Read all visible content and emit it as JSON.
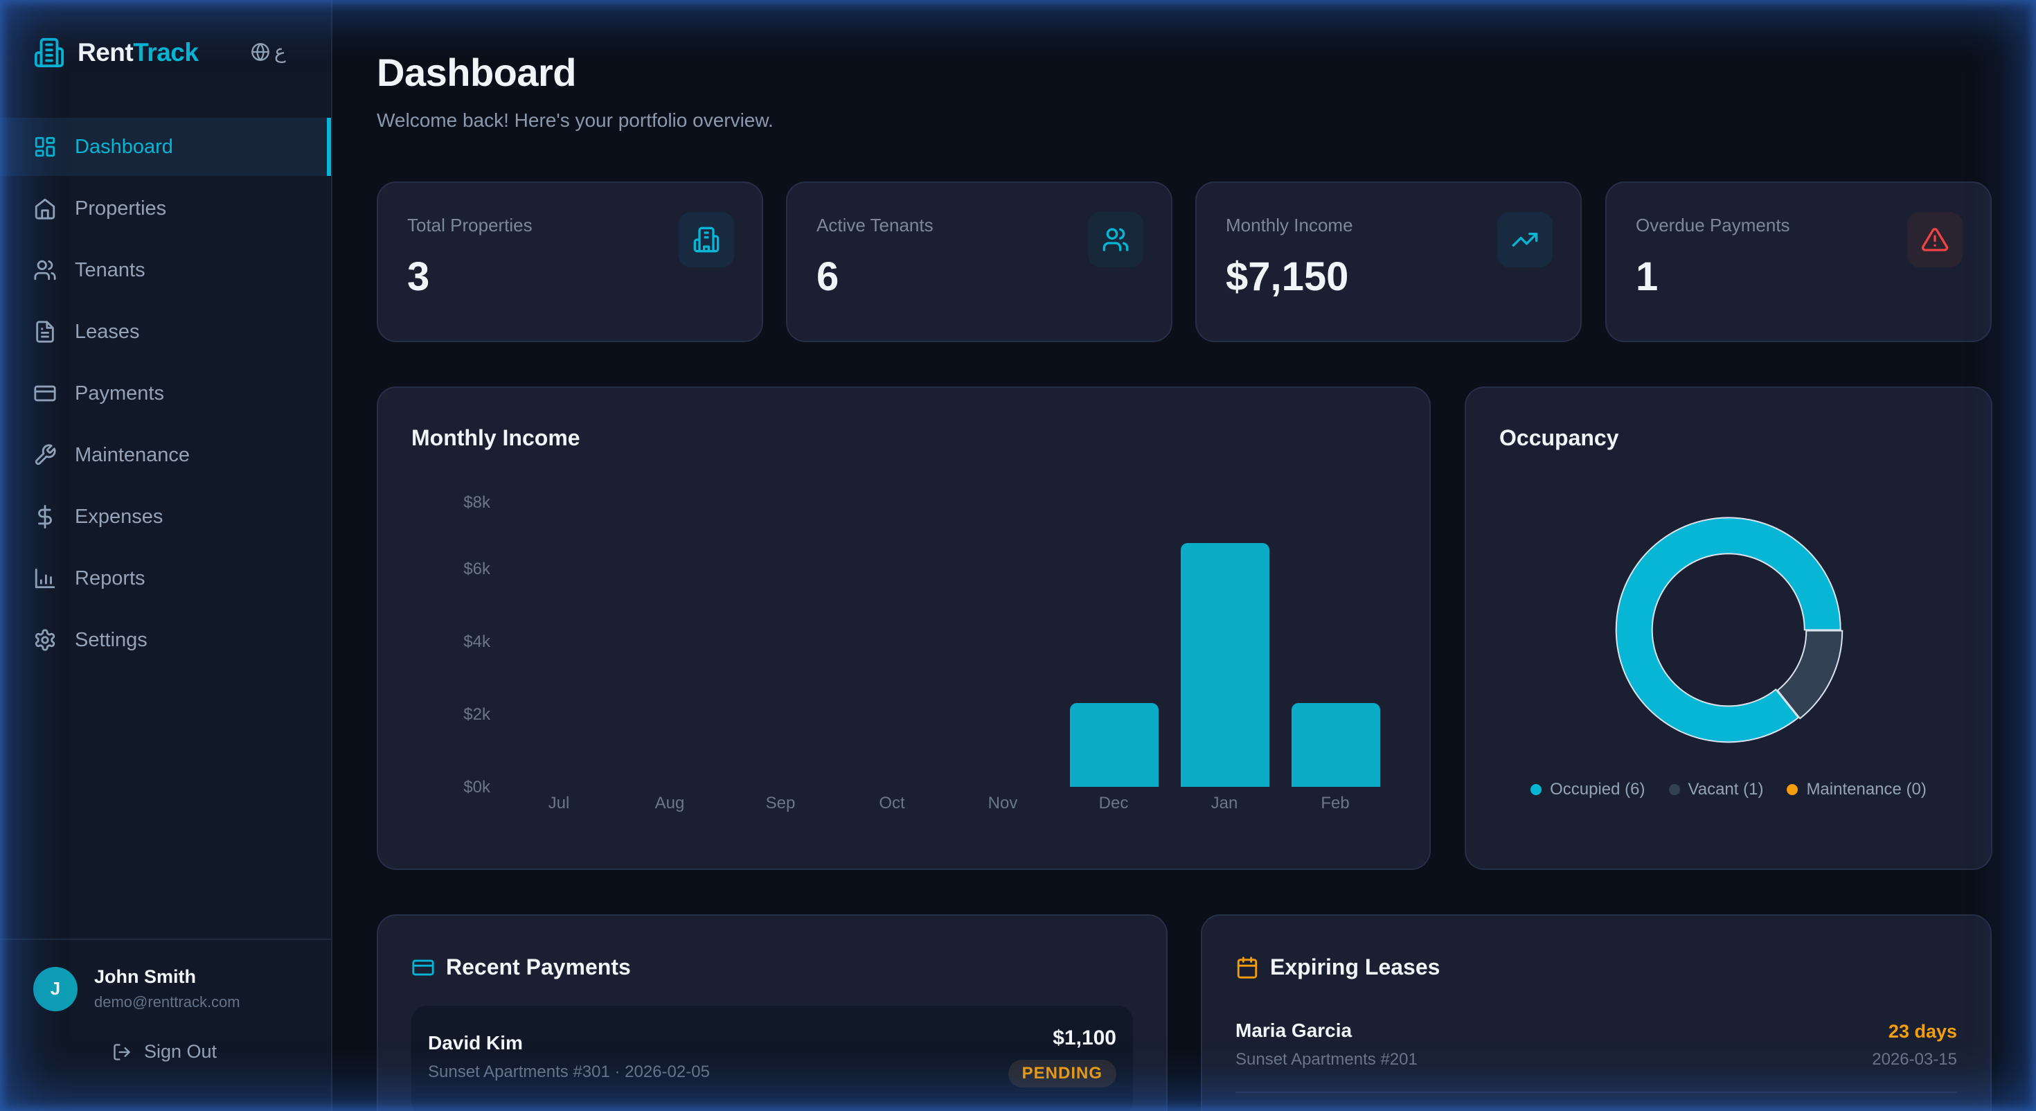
{
  "app": {
    "brand_part1": "Rent",
    "brand_part2": "Track",
    "language_toggle": "ع",
    "accent_color": "#06b6d4"
  },
  "sidebar": {
    "items": [
      {
        "label": "Dashboard",
        "icon": "layout-dashboard-icon",
        "active": true
      },
      {
        "label": "Properties",
        "icon": "home-icon"
      },
      {
        "label": "Tenants",
        "icon": "users-icon"
      },
      {
        "label": "Leases",
        "icon": "file-text-icon"
      },
      {
        "label": "Payments",
        "icon": "credit-card-icon"
      },
      {
        "label": "Maintenance",
        "icon": "wrench-icon"
      },
      {
        "label": "Expenses",
        "icon": "dollar-sign-icon"
      },
      {
        "label": "Reports",
        "icon": "bar-chart-icon"
      },
      {
        "label": "Settings",
        "icon": "gear-icon"
      }
    ],
    "user": {
      "initial": "J",
      "name": "John Smith",
      "email": "demo@renttrack.com"
    },
    "sign_out_label": "Sign Out"
  },
  "header": {
    "title": "Dashboard",
    "subtitle": "Welcome back! Here's your portfolio overview."
  },
  "stats": [
    {
      "label": "Total Properties",
      "value": "3",
      "icon": "building-icon",
      "color": "#06b6d4"
    },
    {
      "label": "Active Tenants",
      "value": "6",
      "icon": "users-icon",
      "color": "#06b6d4"
    },
    {
      "label": "Monthly Income",
      "value": "$7,150",
      "icon": "trending-up-icon",
      "color": "#06b6d4"
    },
    {
      "label": "Overdue Payments",
      "value": "1",
      "icon": "alert-triangle-icon",
      "color": "#ef4444"
    }
  ],
  "income_panel": {
    "title": "Monthly Income"
  },
  "occupancy_panel": {
    "title": "Occupancy",
    "legend": [
      {
        "label": "Occupied (6)",
        "color": "#06b6d4"
      },
      {
        "label": "Vacant (1)",
        "color": "#334155"
      },
      {
        "label": "Maintenance (0)",
        "color": "#f59e0b"
      }
    ]
  },
  "chart_data": [
    {
      "type": "bar",
      "title": "Monthly Income",
      "categories": [
        "Jul",
        "Aug",
        "Sep",
        "Oct",
        "Nov",
        "Dec",
        "Jan",
        "Feb"
      ],
      "values": [
        0,
        0,
        0,
        0,
        0,
        2300,
        6700,
        2300
      ],
      "yticks": [
        "$0k",
        "$2k",
        "$4k",
        "$6k",
        "$8k"
      ],
      "ylim": [
        0,
        8000
      ],
      "xlabel": "",
      "ylabel": "",
      "grid": false,
      "color": "#0aacc8"
    },
    {
      "type": "pie",
      "title": "Occupancy",
      "categories": [
        "Occupied",
        "Vacant",
        "Maintenance"
      ],
      "values": [
        6,
        1,
        0
      ],
      "colors": [
        "#06b6d4",
        "#334155",
        "#f59e0b"
      ],
      "donut": true,
      "legend_position": "bottom"
    }
  ],
  "recent_payments": {
    "title": "Recent Payments",
    "items": [
      {
        "name": "David Kim",
        "meta": "Sunset Apartments #301 · 2026-02-05",
        "amount": "$1,100",
        "status": "PENDING"
      }
    ]
  },
  "expiring_leases": {
    "title": "Expiring Leases",
    "items": [
      {
        "name": "Maria Garcia",
        "meta": "Sunset Apartments #201",
        "days": "23 days",
        "date": "2026-03-15"
      }
    ]
  }
}
